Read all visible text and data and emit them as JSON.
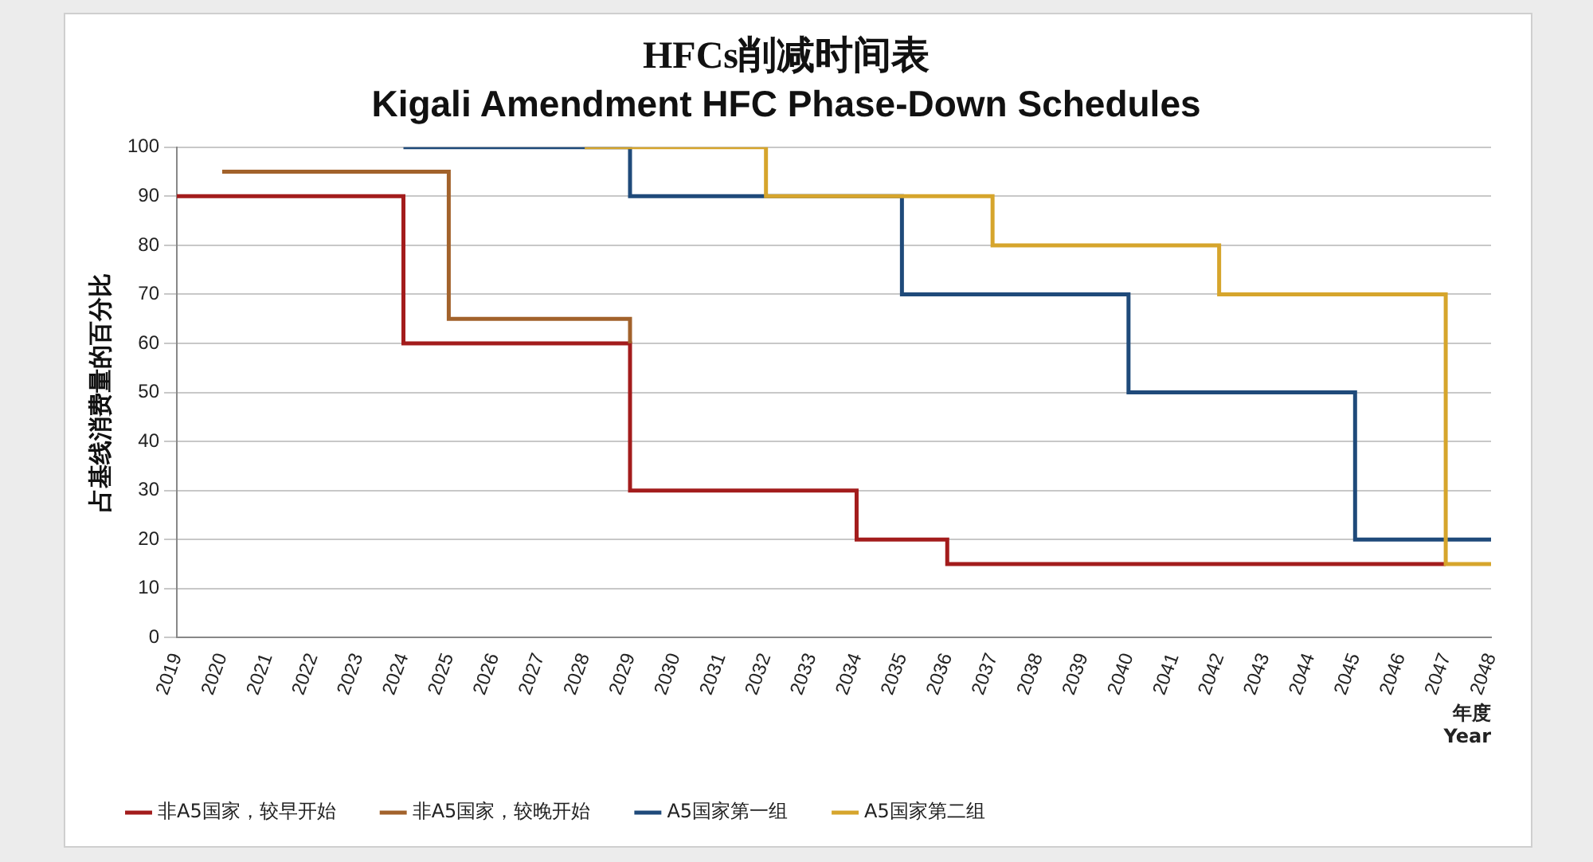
{
  "chart_data": {
    "type": "step",
    "title": "HFCs削减时间表",
    "subtitle": "Kigali Amendment HFC Phase-Down Schedules",
    "ylabel": "占基线消费量的百分比",
    "xlabel": "年度\nYear",
    "categories": [
      "2019",
      "2020",
      "2021",
      "2022",
      "2023",
      "2024",
      "2025",
      "2026",
      "2027",
      "2028",
      "2029",
      "2030",
      "2031",
      "2032",
      "2033",
      "2034",
      "2035",
      "2036",
      "2037",
      "2038",
      "2039",
      "2040",
      "2041",
      "2042",
      "2043",
      "2044",
      "2045",
      "2046",
      "2047",
      "2048"
    ],
    "series": [
      {
        "name": "非A5国家，较早开始",
        "color": "#a31c1c",
        "values": [
          90,
          90,
          90,
          90,
          90,
          60,
          60,
          60,
          60,
          60,
          30,
          30,
          30,
          30,
          30,
          20,
          20,
          15,
          15,
          15,
          15,
          15,
          15,
          15,
          15,
          15,
          15,
          15,
          15,
          null
        ]
      },
      {
        "name": "非A5国家，较晚开始",
        "color": "#a2622b",
        "values": [
          null,
          95,
          95,
          95,
          95,
          95,
          65,
          65,
          65,
          65,
          60,
          null,
          null,
          null,
          null,
          null,
          null,
          null,
          null,
          null,
          null,
          null,
          null,
          null,
          null,
          null,
          null,
          null,
          null,
          null
        ]
      },
      {
        "name": "A5国家第一组",
        "color": "#1f4a7a",
        "values": [
          null,
          null,
          null,
          null,
          null,
          100,
          100,
          100,
          100,
          100,
          90,
          90,
          90,
          90,
          90,
          90,
          70,
          70,
          70,
          70,
          70,
          50,
          50,
          50,
          50,
          50,
          20,
          20,
          20,
          20
        ]
      },
      {
        "name": "A5国家第二组",
        "color": "#d6a52c",
        "values": [
          null,
          null,
          null,
          null,
          null,
          null,
          null,
          null,
          null,
          100,
          100,
          100,
          100,
          90,
          90,
          90,
          90,
          90,
          80,
          80,
          80,
          80,
          80,
          70,
          70,
          70,
          70,
          70,
          15,
          15
        ]
      }
    ],
    "ylim": [
      0,
      100
    ],
    "yticks": [
      0,
      10,
      20,
      30,
      40,
      50,
      60,
      70,
      80,
      90,
      100
    ],
    "grid": "y",
    "legend": "bottom",
    "marker": "none",
    "line_style": "solid"
  }
}
